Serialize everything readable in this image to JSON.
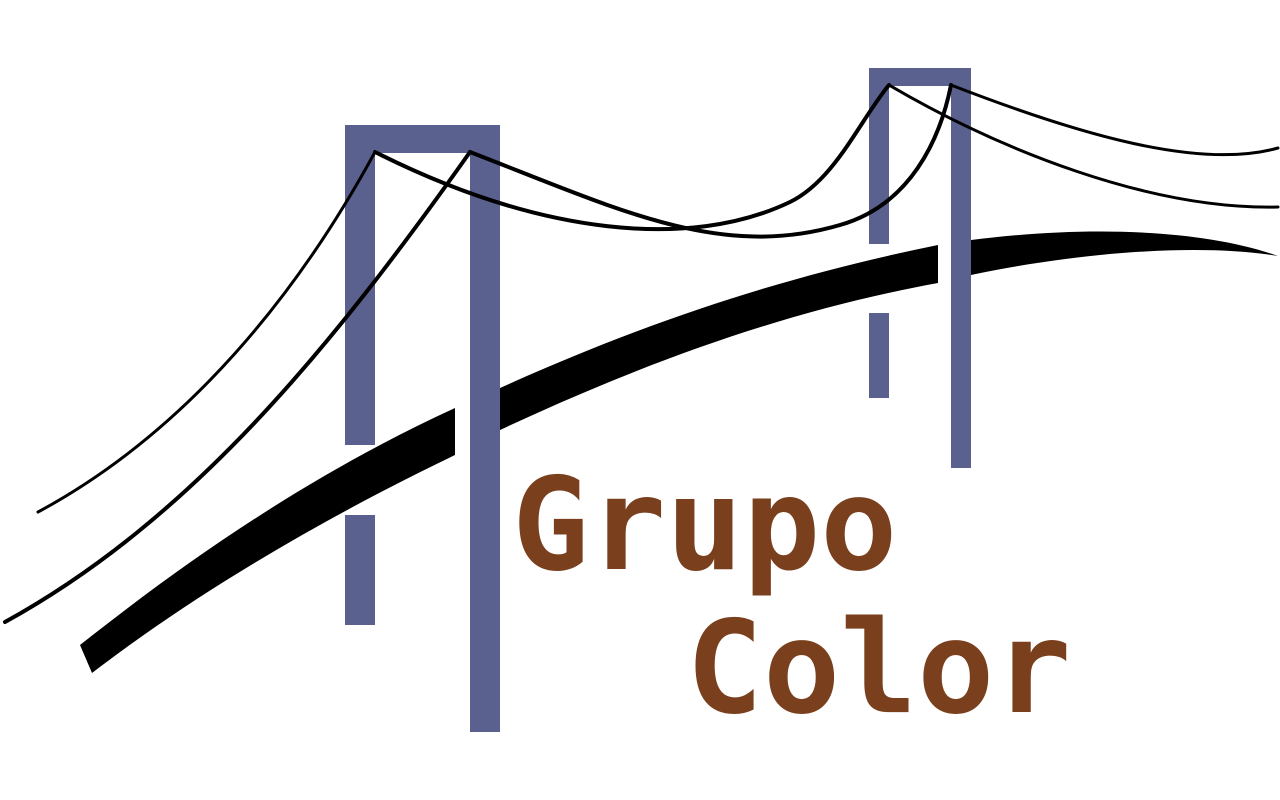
{
  "logo": {
    "line1": "Grupo",
    "line2": "Color"
  },
  "colors": {
    "tower": "#5a618f",
    "text": "#7a3f1d",
    "cable": "#000000",
    "deck": "#000000",
    "background": "#ffffff"
  },
  "icons": [
    "suspension-bridge-icon"
  ]
}
